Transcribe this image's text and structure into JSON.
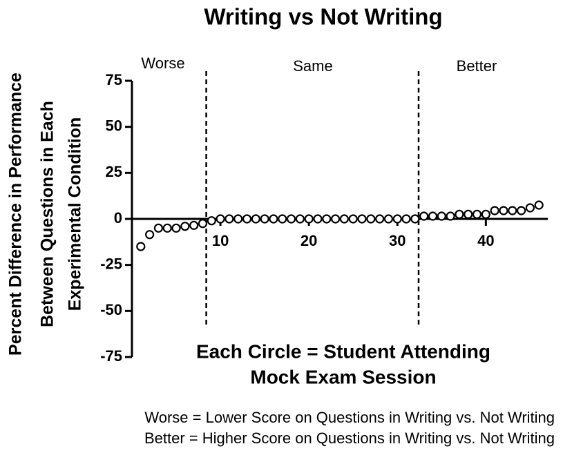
{
  "chart_data": {
    "type": "scatter",
    "title": "Writing vs Not Writing",
    "y_label": [
      "Percent Difference in Performance",
      "Between Questions in Each",
      "Experimental Condition"
    ],
    "x_label": [
      "Each Circle = Student Attending",
      "Mock Exam Session"
    ],
    "region_labels": [
      "Worse",
      "Same",
      "Better"
    ],
    "dividers": [
      8.4,
      32.4
    ],
    "footnotes": [
      "Worse = Lower Score on Questions in Writing vs. Not Writing",
      "Better = Higher Score on Questions in Writing vs. Not Writing"
    ],
    "x": [
      1,
      2,
      3,
      4,
      5,
      6,
      7,
      8,
      9,
      10,
      11,
      12,
      13,
      14,
      15,
      16,
      17,
      18,
      19,
      20,
      21,
      22,
      23,
      24,
      25,
      26,
      27,
      28,
      29,
      30,
      31,
      32,
      33,
      34,
      35,
      36,
      37,
      38,
      39,
      40,
      41,
      42,
      43,
      44,
      45,
      46
    ],
    "values": [
      -15,
      -8.5,
      -5,
      -5,
      -5,
      -4,
      -3.5,
      -2.5,
      -1,
      0,
      0,
      0,
      0,
      0,
      0,
      0,
      0,
      0,
      0,
      0,
      0,
      0,
      0,
      0,
      0,
      0,
      0,
      0,
      0,
      0,
      0,
      0,
      1.5,
      1.5,
      1.5,
      1.5,
      2.5,
      2.5,
      2.5,
      2.5,
      4.5,
      4.5,
      4.5,
      4.5,
      6,
      7.5
    ],
    "color": "#000000",
    "xlim": [
      0,
      47
    ],
    "xticks": [
      10,
      20,
      30,
      40
    ],
    "ylim": [
      -75,
      75
    ],
    "yticks": [
      -75,
      -50,
      -25,
      0,
      25,
      50,
      75
    ]
  }
}
